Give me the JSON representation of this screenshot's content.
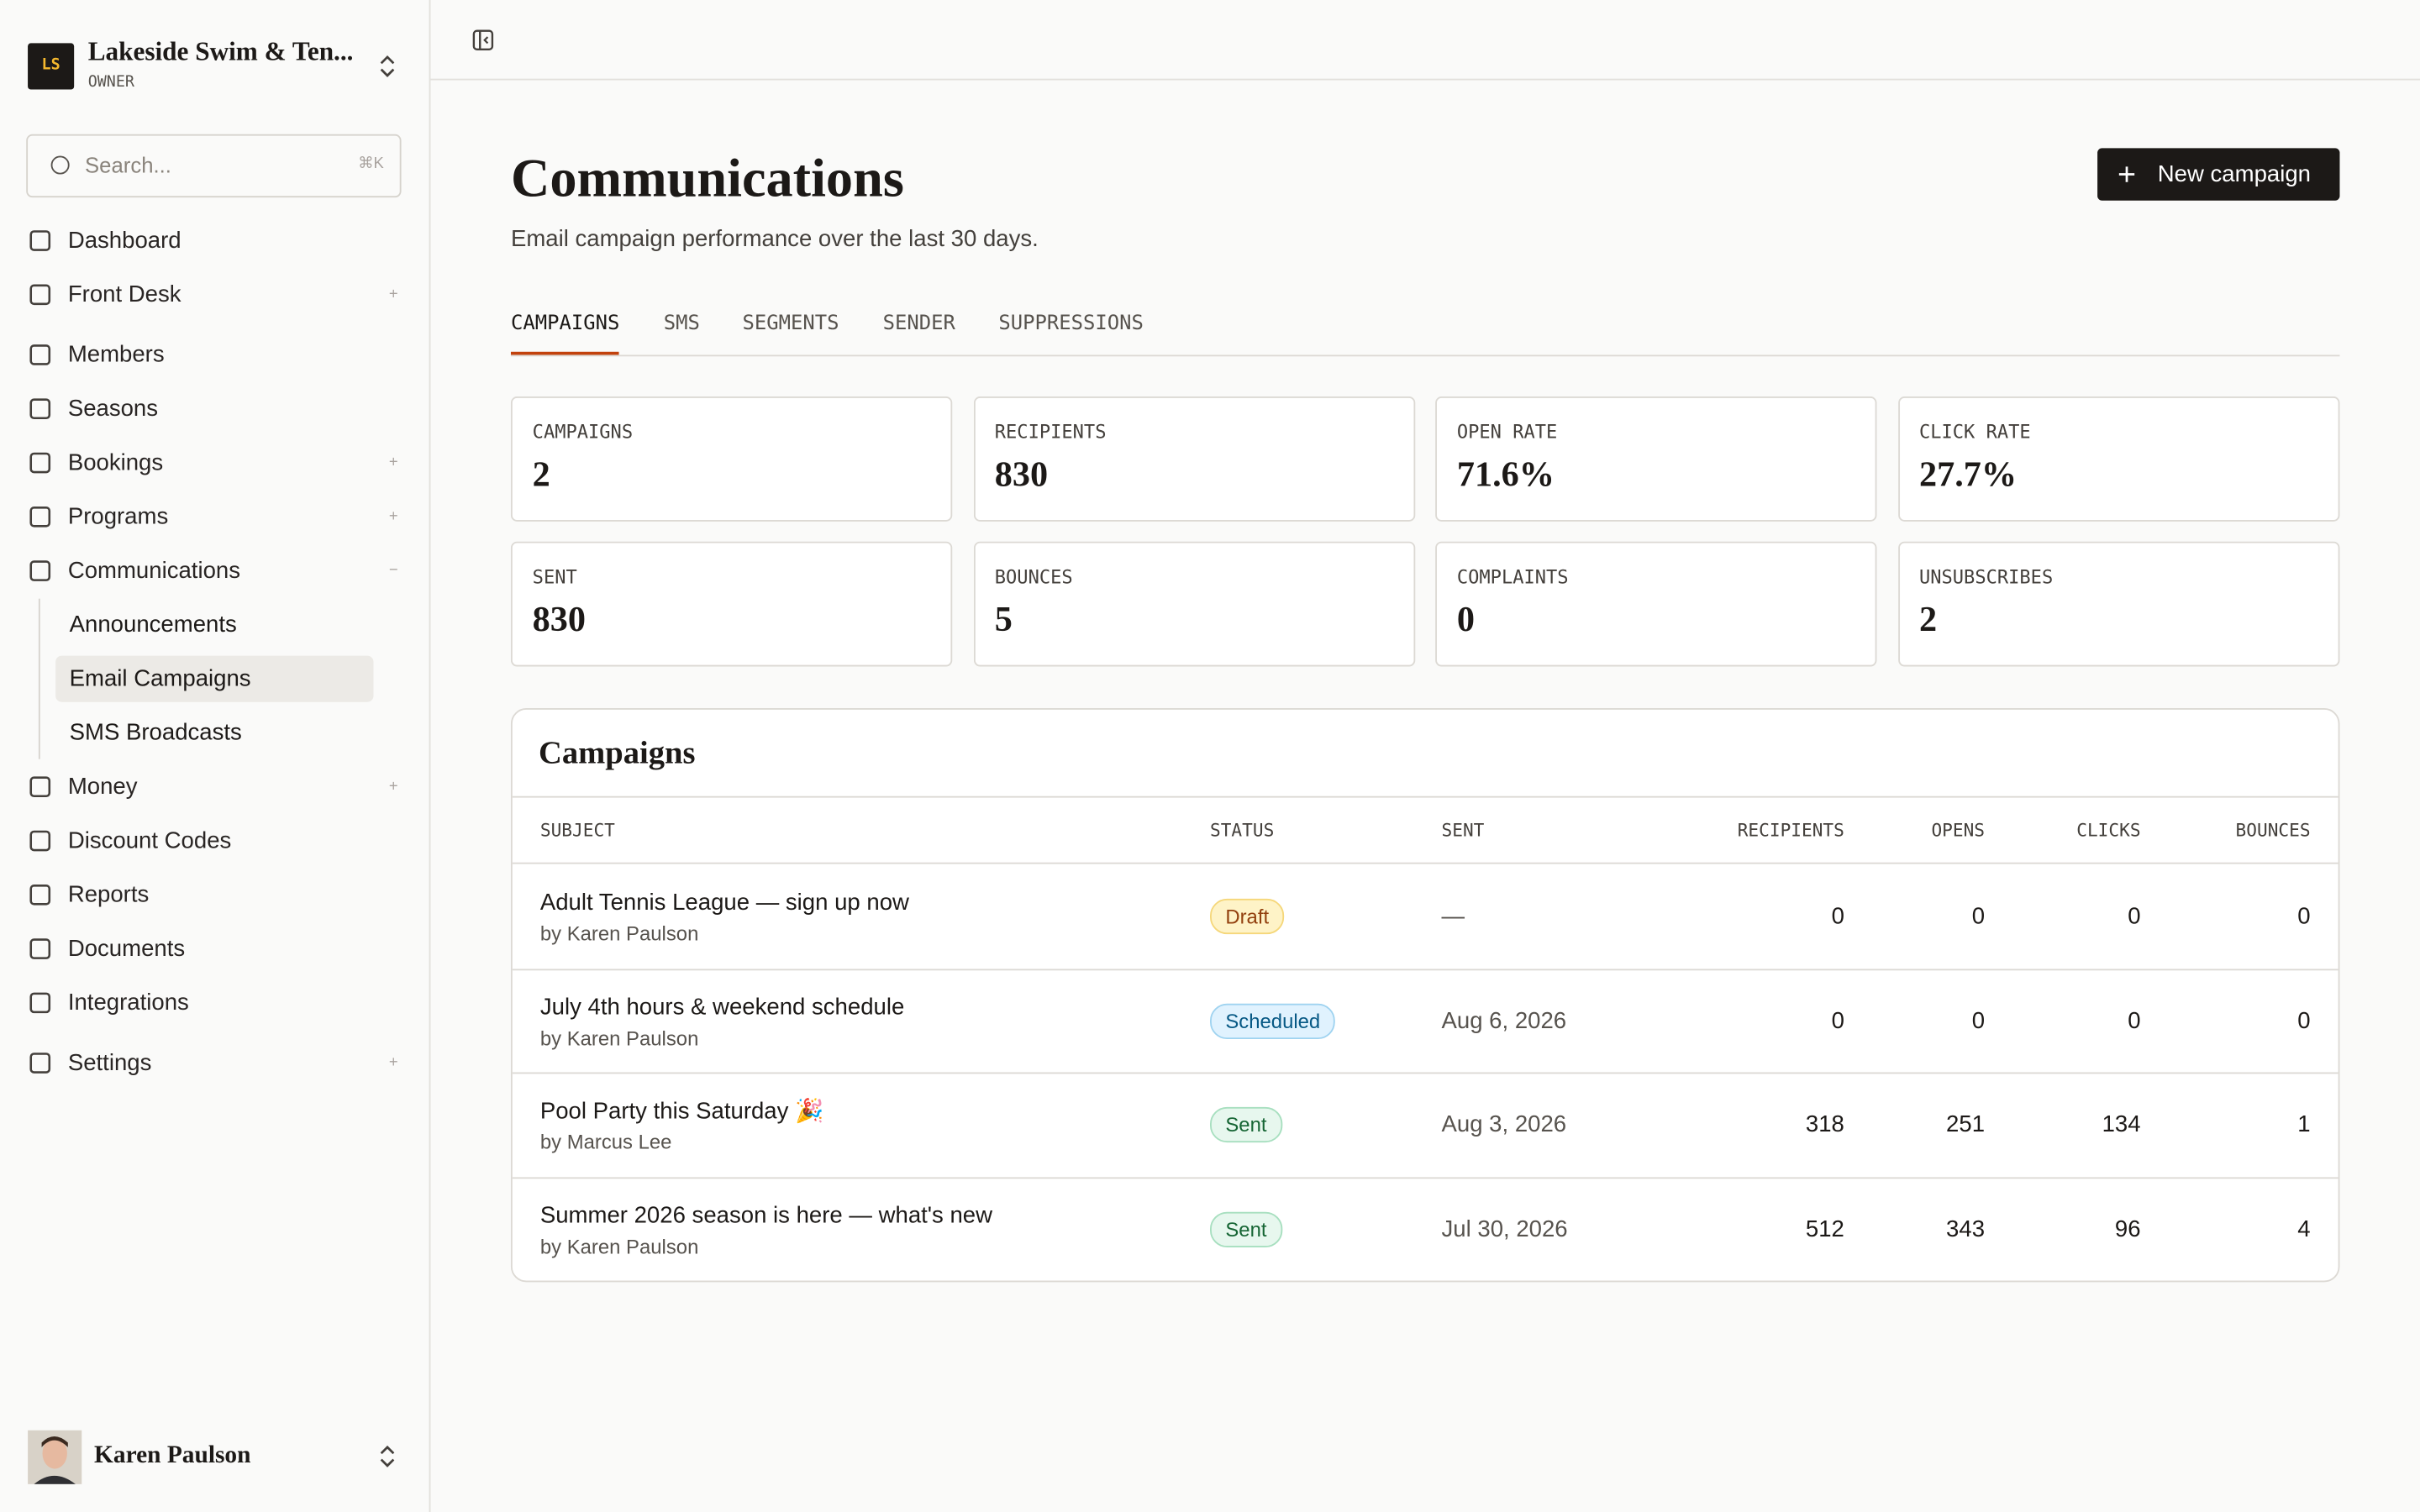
{
  "sidebar": {
    "org": {
      "initials": "LS",
      "name": "Lakeside Swim & Ten...",
      "role": "OWNER"
    },
    "search": {
      "placeholder": "Search...",
      "shortcut": "⌘K"
    },
    "nav": [
      [
        {
          "label": "Dashboard"
        },
        {
          "label": "Front Desk",
          "toggle": "+"
        }
      ],
      [
        {
          "label": "Members"
        },
        {
          "label": "Seasons"
        },
        {
          "label": "Bookings",
          "toggle": "+"
        },
        {
          "label": "Programs",
          "toggle": "+"
        },
        {
          "label": "Communications",
          "toggle": "−",
          "children": [
            {
              "label": "Announcements"
            },
            {
              "label": "Email Campaigns",
              "active": true
            },
            {
              "label": "SMS Broadcasts"
            }
          ]
        },
        {
          "label": "Money",
          "toggle": "+"
        },
        {
          "label": "Discount Codes"
        },
        {
          "label": "Reports"
        },
        {
          "label": "Documents"
        },
        {
          "label": "Integrations"
        }
      ],
      [
        {
          "label": "Settings",
          "toggle": "+"
        }
      ]
    ],
    "user": {
      "name": "Karen Paulson"
    }
  },
  "header": {
    "title": "Communications",
    "subtitle": "Email campaign performance over the last 30 days.",
    "button": "New campaign"
  },
  "tabs": {
    "items": [
      "CAMPAIGNS",
      "SMS",
      "SEGMENTS",
      "SENDER",
      "SUPPRESSIONS"
    ],
    "active": 0
  },
  "stats": [
    {
      "label": "CAMPAIGNS",
      "value": "2"
    },
    {
      "label": "RECIPIENTS",
      "value": "830"
    },
    {
      "label": "OPEN RATE",
      "value": "71.6%"
    },
    {
      "label": "CLICK RATE",
      "value": "27.7%"
    },
    {
      "label": "SENT",
      "value": "830"
    },
    {
      "label": "BOUNCES",
      "value": "5"
    },
    {
      "label": "COMPLAINTS",
      "value": "0"
    },
    {
      "label": "UNSUBSCRIBES",
      "value": "2"
    }
  ],
  "table": {
    "title": "Campaigns",
    "columns": [
      "SUBJECT",
      "STATUS",
      "SENT",
      "RECIPIENTS",
      "OPENS",
      "CLICKS",
      "BOUNCES"
    ],
    "rows": [
      {
        "subject": "Adult Tennis League — sign up now",
        "author": "by Karen Paulson",
        "status": "Draft",
        "tone": "amber",
        "sent": "—",
        "recipients": 0,
        "opens": 0,
        "clicks": 0,
        "bounces": 0
      },
      {
        "subject": "July 4th hours & weekend schedule",
        "author": "by Karen Paulson",
        "status": "Scheduled",
        "tone": "blue",
        "sent": "Aug 6, 2026",
        "recipients": 0,
        "opens": 0,
        "clicks": 0,
        "bounces": 0
      },
      {
        "subject": "Pool Party this Saturday 🎉",
        "author": "by Marcus Lee",
        "status": "Sent",
        "tone": "green",
        "sent": "Aug 3, 2026",
        "recipients": 318,
        "opens": 251,
        "clicks": 134,
        "bounces": 1
      },
      {
        "subject": "Summer 2026 season is here — what's new",
        "author": "by Karen Paulson",
        "status": "Sent",
        "tone": "green",
        "sent": "Jul 30, 2026",
        "recipients": 512,
        "opens": 343,
        "clicks": 96,
        "bounces": 4
      }
    ]
  }
}
